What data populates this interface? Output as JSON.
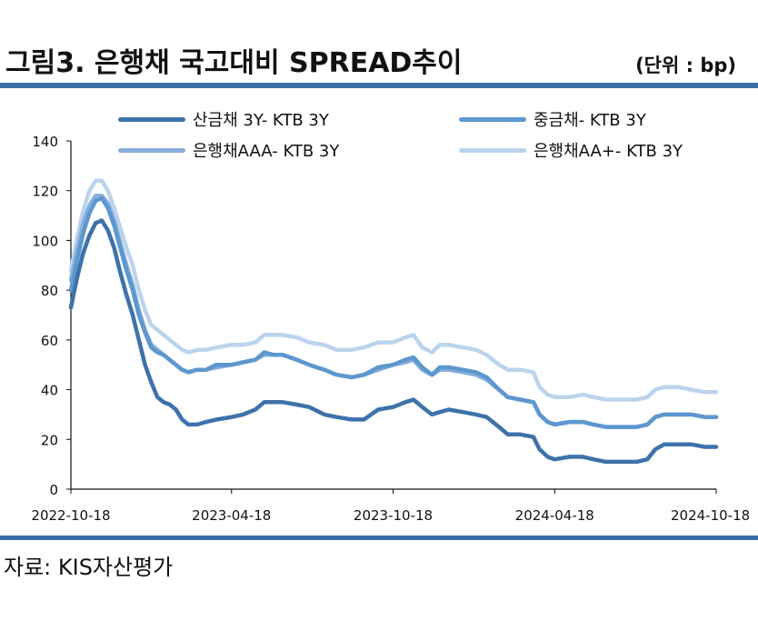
{
  "header": {
    "title": "그림3. 은행채 국고대비 SPREAD추이",
    "unit": "(단위 : bp)"
  },
  "footer": {
    "source": "자료: KIS자산평가"
  },
  "colors": {
    "rule": "#3a6fa5",
    "series": [
      "#3d72ab",
      "#5d97cf",
      "#87afdc",
      "#bcd3ec"
    ]
  },
  "chart_data": {
    "type": "line",
    "title": "그림3. 은행채 국고대비 SPREAD추이",
    "xlabel": "",
    "ylabel": "",
    "ylim": [
      0,
      140
    ],
    "yticks": [
      0,
      20,
      40,
      60,
      80,
      100,
      120,
      140
    ],
    "xlim": [
      "2022-10-18",
      "2024-10-18"
    ],
    "xticks": [
      "2022-10-18",
      "2023-04-18",
      "2023-10-18",
      "2024-04-18",
      "2024-10-18"
    ],
    "grid": false,
    "legend_position": "top",
    "series": [
      {
        "name": "산금채 3Y- KTB 3Y",
        "color": "#3d72ab",
        "points": [
          [
            "2022-10-18",
            73
          ],
          [
            "2022-10-25",
            85
          ],
          [
            "2022-11-01",
            95
          ],
          [
            "2022-11-08",
            102
          ],
          [
            "2022-11-15",
            107
          ],
          [
            "2022-11-22",
            108
          ],
          [
            "2022-11-29",
            104
          ],
          [
            "2022-12-06",
            97
          ],
          [
            "2022-12-13",
            87
          ],
          [
            "2022-12-20",
            78
          ],
          [
            "2022-12-27",
            70
          ],
          [
            "2023-01-03",
            60
          ],
          [
            "2023-01-10",
            50
          ],
          [
            "2023-01-17",
            43
          ],
          [
            "2023-01-24",
            37
          ],
          [
            "2023-01-31",
            35
          ],
          [
            "2023-02-07",
            34
          ],
          [
            "2023-02-14",
            32
          ],
          [
            "2023-02-21",
            28
          ],
          [
            "2023-02-28",
            26
          ],
          [
            "2023-03-10",
            26
          ],
          [
            "2023-03-20",
            27
          ],
          [
            "2023-04-01",
            28
          ],
          [
            "2023-04-18",
            29
          ],
          [
            "2023-05-01",
            30
          ],
          [
            "2023-05-15",
            32
          ],
          [
            "2023-05-25",
            35
          ],
          [
            "2023-06-05",
            35
          ],
          [
            "2023-06-15",
            35
          ],
          [
            "2023-07-01",
            34
          ],
          [
            "2023-07-15",
            33
          ],
          [
            "2023-08-01",
            30
          ],
          [
            "2023-08-15",
            29
          ],
          [
            "2023-09-01",
            28
          ],
          [
            "2023-09-15",
            28
          ],
          [
            "2023-10-01",
            32
          ],
          [
            "2023-10-18",
            33
          ],
          [
            "2023-11-01",
            35
          ],
          [
            "2023-11-10",
            36
          ],
          [
            "2023-11-20",
            33
          ],
          [
            "2023-12-01",
            30
          ],
          [
            "2023-12-10",
            31
          ],
          [
            "2023-12-20",
            32
          ],
          [
            "2024-01-05",
            31
          ],
          [
            "2024-01-20",
            30
          ],
          [
            "2024-02-01",
            29
          ],
          [
            "2024-02-15",
            25
          ],
          [
            "2024-02-25",
            22
          ],
          [
            "2024-03-10",
            22
          ],
          [
            "2024-03-25",
            21
          ],
          [
            "2024-04-01",
            16
          ],
          [
            "2024-04-10",
            13
          ],
          [
            "2024-04-18",
            12
          ],
          [
            "2024-05-05",
            13
          ],
          [
            "2024-05-20",
            13
          ],
          [
            "2024-06-01",
            12
          ],
          [
            "2024-06-15",
            11
          ],
          [
            "2024-07-01",
            11
          ],
          [
            "2024-07-20",
            11
          ],
          [
            "2024-08-01",
            12
          ],
          [
            "2024-08-10",
            16
          ],
          [
            "2024-08-20",
            18
          ],
          [
            "2024-09-05",
            18
          ],
          [
            "2024-09-20",
            18
          ],
          [
            "2024-10-05",
            17
          ],
          [
            "2024-10-18",
            17
          ]
        ]
      },
      {
        "name": "중금채- KTB 3Y",
        "color": "#5d97cf",
        "points": [
          [
            "2022-10-18",
            80
          ],
          [
            "2022-10-25",
            92
          ],
          [
            "2022-11-01",
            103
          ],
          [
            "2022-11-08",
            111
          ],
          [
            "2022-11-15",
            116
          ],
          [
            "2022-11-22",
            117
          ],
          [
            "2022-11-29",
            113
          ],
          [
            "2022-12-06",
            106
          ],
          [
            "2022-12-13",
            97
          ],
          [
            "2022-12-20",
            88
          ],
          [
            "2022-12-27",
            80
          ],
          [
            "2023-01-03",
            70
          ],
          [
            "2023-01-10",
            63
          ],
          [
            "2023-01-17",
            57
          ],
          [
            "2023-01-24",
            55
          ],
          [
            "2023-01-31",
            54
          ],
          [
            "2023-02-07",
            52
          ],
          [
            "2023-02-14",
            50
          ],
          [
            "2023-02-21",
            48
          ],
          [
            "2023-02-28",
            47
          ],
          [
            "2023-03-10",
            48
          ],
          [
            "2023-03-20",
            48
          ],
          [
            "2023-04-01",
            50
          ],
          [
            "2023-04-18",
            50
          ],
          [
            "2023-05-01",
            51
          ],
          [
            "2023-05-15",
            52
          ],
          [
            "2023-05-25",
            55
          ],
          [
            "2023-06-05",
            54
          ],
          [
            "2023-06-15",
            54
          ],
          [
            "2023-07-01",
            52
          ],
          [
            "2023-07-15",
            50
          ],
          [
            "2023-08-01",
            48
          ],
          [
            "2023-08-15",
            46
          ],
          [
            "2023-09-01",
            45
          ],
          [
            "2023-09-15",
            46
          ],
          [
            "2023-10-01",
            49
          ],
          [
            "2023-10-18",
            50
          ],
          [
            "2023-11-01",
            52
          ],
          [
            "2023-11-10",
            53
          ],
          [
            "2023-11-20",
            49
          ],
          [
            "2023-12-01",
            46
          ],
          [
            "2023-12-10",
            49
          ],
          [
            "2023-12-20",
            49
          ],
          [
            "2024-01-05",
            48
          ],
          [
            "2024-01-20",
            47
          ],
          [
            "2024-02-01",
            45
          ],
          [
            "2024-02-15",
            40
          ],
          [
            "2024-02-25",
            37
          ],
          [
            "2024-03-10",
            36
          ],
          [
            "2024-03-25",
            35
          ],
          [
            "2024-04-01",
            30
          ],
          [
            "2024-04-10",
            27
          ],
          [
            "2024-04-18",
            26
          ],
          [
            "2024-05-05",
            27
          ],
          [
            "2024-05-20",
            27
          ],
          [
            "2024-06-01",
            26
          ],
          [
            "2024-06-15",
            25
          ],
          [
            "2024-07-01",
            25
          ],
          [
            "2024-07-20",
            25
          ],
          [
            "2024-08-01",
            26
          ],
          [
            "2024-08-10",
            29
          ],
          [
            "2024-08-20",
            30
          ],
          [
            "2024-09-05",
            30
          ],
          [
            "2024-09-20",
            30
          ],
          [
            "2024-10-05",
            29
          ],
          [
            "2024-10-18",
            29
          ]
        ]
      },
      {
        "name": "은행채AAA- KTB 3Y",
        "color": "#87afdc",
        "points": [
          [
            "2022-10-18",
            84
          ],
          [
            "2022-10-25",
            96
          ],
          [
            "2022-11-01",
            107
          ],
          [
            "2022-11-08",
            114
          ],
          [
            "2022-11-15",
            118
          ],
          [
            "2022-11-22",
            118
          ],
          [
            "2022-11-29",
            115
          ],
          [
            "2022-12-06",
            108
          ],
          [
            "2022-12-13",
            99
          ],
          [
            "2022-12-20",
            90
          ],
          [
            "2022-12-27",
            82
          ],
          [
            "2023-01-03",
            72
          ],
          [
            "2023-01-10",
            64
          ],
          [
            "2023-01-17",
            58
          ],
          [
            "2023-01-24",
            56
          ],
          [
            "2023-01-31",
            54
          ],
          [
            "2023-02-07",
            52
          ],
          [
            "2023-02-14",
            50
          ],
          [
            "2023-02-21",
            48
          ],
          [
            "2023-02-28",
            47
          ],
          [
            "2023-03-10",
            48
          ],
          [
            "2023-03-20",
            48
          ],
          [
            "2023-04-01",
            49
          ],
          [
            "2023-04-18",
            50
          ],
          [
            "2023-05-01",
            51
          ],
          [
            "2023-05-15",
            52
          ],
          [
            "2023-05-25",
            54
          ],
          [
            "2023-06-05",
            54
          ],
          [
            "2023-06-15",
            54
          ],
          [
            "2023-07-01",
            52
          ],
          [
            "2023-07-15",
            50
          ],
          [
            "2023-08-01",
            48
          ],
          [
            "2023-08-15",
            46
          ],
          [
            "2023-09-01",
            45
          ],
          [
            "2023-09-15",
            46
          ],
          [
            "2023-10-01",
            48
          ],
          [
            "2023-10-18",
            50
          ],
          [
            "2023-11-01",
            51
          ],
          [
            "2023-11-10",
            52
          ],
          [
            "2023-11-20",
            48
          ],
          [
            "2023-12-01",
            46
          ],
          [
            "2023-12-10",
            48
          ],
          [
            "2023-12-20",
            48
          ],
          [
            "2024-01-05",
            47
          ],
          [
            "2024-01-20",
            46
          ],
          [
            "2024-02-01",
            44
          ],
          [
            "2024-02-15",
            40
          ],
          [
            "2024-02-25",
            37
          ],
          [
            "2024-03-10",
            36
          ],
          [
            "2024-03-25",
            35
          ],
          [
            "2024-04-01",
            30
          ],
          [
            "2024-04-10",
            27
          ],
          [
            "2024-04-18",
            26
          ],
          [
            "2024-05-05",
            27
          ],
          [
            "2024-05-20",
            27
          ],
          [
            "2024-06-01",
            26
          ],
          [
            "2024-06-15",
            25
          ],
          [
            "2024-07-01",
            25
          ],
          [
            "2024-07-20",
            25
          ],
          [
            "2024-08-01",
            26
          ],
          [
            "2024-08-10",
            29
          ],
          [
            "2024-08-20",
            30
          ],
          [
            "2024-09-05",
            30
          ],
          [
            "2024-09-20",
            30
          ],
          [
            "2024-10-05",
            29
          ],
          [
            "2024-10-18",
            29
          ]
        ]
      },
      {
        "name": "은행채AA+- KTB 3Y",
        "color": "#bcd3ec",
        "points": [
          [
            "2022-10-18",
            88
          ],
          [
            "2022-10-25",
            101
          ],
          [
            "2022-11-01",
            112
          ],
          [
            "2022-11-08",
            120
          ],
          [
            "2022-11-15",
            124
          ],
          [
            "2022-11-22",
            124
          ],
          [
            "2022-11-29",
            120
          ],
          [
            "2022-12-06",
            113
          ],
          [
            "2022-12-13",
            105
          ],
          [
            "2022-12-20",
            97
          ],
          [
            "2022-12-27",
            90
          ],
          [
            "2023-01-03",
            80
          ],
          [
            "2023-01-10",
            72
          ],
          [
            "2023-01-17",
            66
          ],
          [
            "2023-01-24",
            64
          ],
          [
            "2023-01-31",
            62
          ],
          [
            "2023-02-07",
            60
          ],
          [
            "2023-02-14",
            58
          ],
          [
            "2023-02-21",
            56
          ],
          [
            "2023-02-28",
            55
          ],
          [
            "2023-03-10",
            56
          ],
          [
            "2023-03-20",
            56
          ],
          [
            "2023-04-01",
            57
          ],
          [
            "2023-04-18",
            58
          ],
          [
            "2023-05-01",
            58
          ],
          [
            "2023-05-15",
            59
          ],
          [
            "2023-05-25",
            62
          ],
          [
            "2023-06-05",
            62
          ],
          [
            "2023-06-15",
            62
          ],
          [
            "2023-07-01",
            61
          ],
          [
            "2023-07-15",
            59
          ],
          [
            "2023-08-01",
            58
          ],
          [
            "2023-08-15",
            56
          ],
          [
            "2023-09-01",
            56
          ],
          [
            "2023-09-15",
            57
          ],
          [
            "2023-10-01",
            59
          ],
          [
            "2023-10-18",
            59
          ],
          [
            "2023-11-01",
            61
          ],
          [
            "2023-11-10",
            62
          ],
          [
            "2023-11-20",
            57
          ],
          [
            "2023-12-01",
            55
          ],
          [
            "2023-12-10",
            58
          ],
          [
            "2023-12-20",
            58
          ],
          [
            "2024-01-05",
            57
          ],
          [
            "2024-01-20",
            56
          ],
          [
            "2024-02-01",
            54
          ],
          [
            "2024-02-15",
            50
          ],
          [
            "2024-02-25",
            48
          ],
          [
            "2024-03-10",
            48
          ],
          [
            "2024-03-25",
            47
          ],
          [
            "2024-04-01",
            41
          ],
          [
            "2024-04-10",
            38
          ],
          [
            "2024-04-18",
            37
          ],
          [
            "2024-05-05",
            37
          ],
          [
            "2024-05-20",
            38
          ],
          [
            "2024-06-01",
            37
          ],
          [
            "2024-06-15",
            36
          ],
          [
            "2024-07-01",
            36
          ],
          [
            "2024-07-20",
            36
          ],
          [
            "2024-08-01",
            37
          ],
          [
            "2024-08-10",
            40
          ],
          [
            "2024-08-20",
            41
          ],
          [
            "2024-09-05",
            41
          ],
          [
            "2024-09-20",
            40
          ],
          [
            "2024-10-05",
            39
          ],
          [
            "2024-10-18",
            39
          ]
        ]
      }
    ]
  }
}
